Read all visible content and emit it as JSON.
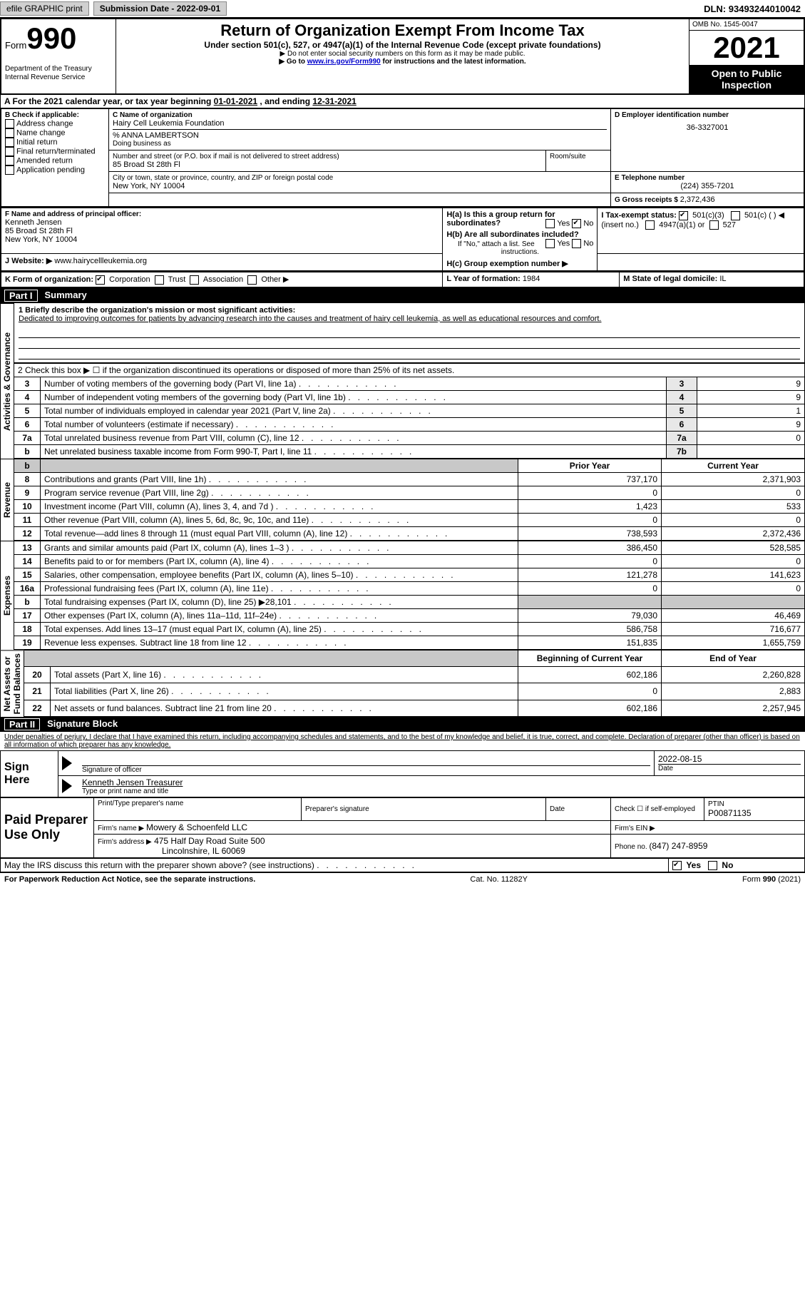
{
  "topbar": {
    "efile": "efile GRAPHIC print",
    "subdate_label": "Submission Date - ",
    "subdate": "2022-09-01",
    "dln_label": "DLN: ",
    "dln": "93493244010042"
  },
  "header": {
    "form_small": "Form",
    "form_no": "990",
    "dept": "Department of the Treasury\nInternal Revenue Service",
    "title": "Return of Organization Exempt From Income Tax",
    "sub1": "Under section 501(c), 527, or 4947(a)(1) of the Internal Revenue Code (except private foundations)",
    "sub2": "▶ Do not enter social security numbers on this form as it may be made public.",
    "sub3_pre": "▶ Go to ",
    "sub3_link": "www.irs.gov/Form990",
    "sub3_post": " for instructions and the latest information.",
    "omb": "OMB No. 1545-0047",
    "year": "2021",
    "open": "Open to Public Inspection"
  },
  "periodline": {
    "a_pre": "A For the 2021 calendar year, or tax year beginning ",
    "begin": "01-01-2021",
    "mid": " , and ending ",
    "end": "12-31-2021"
  },
  "checkB": {
    "label": "B Check if applicable:",
    "opts": [
      "Address change",
      "Name change",
      "Initial return",
      "Final return/terminated",
      "Amended return",
      "Application pending"
    ]
  },
  "blockC": {
    "label": "C Name of organization",
    "name": "Hairy Cell Leukemia Foundation",
    "care": "% ANNA LAMBERTSON",
    "dba_label": "Doing business as",
    "addr_label": "Number and street (or P.O. box if mail is not delivered to street address)",
    "room": "Room/suite",
    "addr": "85 Broad St 28th Fl",
    "city_label": "City or town, state or province, country, and ZIP or foreign postal code",
    "city": "New York, NY  10004"
  },
  "blockD": {
    "label": "D Employer identification number",
    "val": "36-3327001"
  },
  "blockE": {
    "label": "E Telephone number",
    "val": "(224) 355-7201"
  },
  "blockG": {
    "label": "G Gross receipts $ ",
    "val": "2,372,436"
  },
  "blockF": {
    "label": "F  Name and address of principal officer:",
    "name": "Kenneth Jensen",
    "addr1": "85 Broad St 28th Fl",
    "addr2": "New York, NY  10004"
  },
  "blockH": {
    "a": "H(a)  Is this a group return for subordinates?",
    "b": "H(b)  Are all subordinates included?",
    "ifno": "If \"No,\" attach a list. See instructions.",
    "c": "H(c)  Group exemption number ▶",
    "yes": "Yes",
    "no": "No"
  },
  "blockI": {
    "label": "I   Tax-exempt status:",
    "o1": "501(c)(3)",
    "o2": "501(c) (  ) ◀ (insert no.)",
    "o3": "4947(a)(1) or",
    "o4": "527"
  },
  "blockJ": {
    "label": "J   Website: ▶ ",
    "val": "www.hairycellleukemia.org"
  },
  "blockK": {
    "label": "K Form of organization:",
    "o1": "Corporation",
    "o2": "Trust",
    "o3": "Association",
    "o4": "Other ▶"
  },
  "blockL": {
    "label": "L Year of formation: ",
    "val": "1984"
  },
  "blockM": {
    "label": "M State of legal domicile: ",
    "val": "IL"
  },
  "part1": {
    "no": "Part I",
    "title": "Summary"
  },
  "summary": {
    "s1_label": "1   Briefly describe the organization's mission or most significant activities:",
    "s1_text": "Dedicated to improving outcomes for patients by advancing research into the causes and treatment of hairy cell leukemia, as well as educational resources and comfort.",
    "s2": "2   Check this box ▶ ☐  if the organization discontinued its operations or disposed of more than 25% of its net assets.",
    "rows_ag": [
      {
        "n": "3",
        "t": "Number of voting members of the governing body (Part VI, line 1a)",
        "box": "3",
        "v": "9"
      },
      {
        "n": "4",
        "t": "Number of independent voting members of the governing body (Part VI, line 1b)",
        "box": "4",
        "v": "9"
      },
      {
        "n": "5",
        "t": "Total number of individuals employed in calendar year 2021 (Part V, line 2a)",
        "box": "5",
        "v": "1"
      },
      {
        "n": "6",
        "t": "Total number of volunteers (estimate if necessary)",
        "box": "6",
        "v": "9"
      },
      {
        "n": "7a",
        "t": "Total unrelated business revenue from Part VIII, column (C), line 12",
        "box": "7a",
        "v": "0"
      },
      {
        "n": "b",
        "t": "Net unrelated business taxable income from Form 990-T, Part I, line 11",
        "box": "7b",
        "v": ""
      }
    ],
    "col_prior": "Prior Year",
    "col_curr": "Current Year",
    "revenue": [
      {
        "n": "8",
        "t": "Contributions and grants (Part VIII, line 1h)",
        "p": "737,170",
        "c": "2,371,903"
      },
      {
        "n": "9",
        "t": "Program service revenue (Part VIII, line 2g)",
        "p": "0",
        "c": "0"
      },
      {
        "n": "10",
        "t": "Investment income (Part VIII, column (A), lines 3, 4, and 7d )",
        "p": "1,423",
        "c": "533"
      },
      {
        "n": "11",
        "t": "Other revenue (Part VIII, column (A), lines 5, 6d, 8c, 9c, 10c, and 11e)",
        "p": "0",
        "c": "0"
      },
      {
        "n": "12",
        "t": "Total revenue—add lines 8 through 11 (must equal Part VIII, column (A), line 12)",
        "p": "738,593",
        "c": "2,372,436"
      }
    ],
    "expenses": [
      {
        "n": "13",
        "t": "Grants and similar amounts paid (Part IX, column (A), lines 1–3 )",
        "p": "386,450",
        "c": "528,585"
      },
      {
        "n": "14",
        "t": "Benefits paid to or for members (Part IX, column (A), line 4)",
        "p": "0",
        "c": "0"
      },
      {
        "n": "15",
        "t": "Salaries, other compensation, employee benefits (Part IX, column (A), lines 5–10)",
        "p": "121,278",
        "c": "141,623"
      },
      {
        "n": "16a",
        "t": "Professional fundraising fees (Part IX, column (A), line 11e)",
        "p": "0",
        "c": "0"
      },
      {
        "n": "b",
        "t": "Total fundraising expenses (Part IX, column (D), line 25) ▶28,101",
        "p": "",
        "c": "",
        "shade": true
      },
      {
        "n": "17",
        "t": "Other expenses (Part IX, column (A), lines 11a–11d, 11f–24e)",
        "p": "79,030",
        "c": "46,469"
      },
      {
        "n": "18",
        "t": "Total expenses. Add lines 13–17 (must equal Part IX, column (A), line 25)",
        "p": "586,758",
        "c": "716,677"
      },
      {
        "n": "19",
        "t": "Revenue less expenses. Subtract line 18 from line 12",
        "p": "151,835",
        "c": "1,655,759"
      }
    ],
    "col_beg": "Beginning of Current Year",
    "col_end": "End of Year",
    "netassets": [
      {
        "n": "20",
        "t": "Total assets (Part X, line 16)",
        "p": "602,186",
        "c": "2,260,828"
      },
      {
        "n": "21",
        "t": "Total liabilities (Part X, line 26)",
        "p": "0",
        "c": "2,883"
      },
      {
        "n": "22",
        "t": "Net assets or fund balances. Subtract line 21 from line 20",
        "p": "602,186",
        "c": "2,257,945"
      }
    ]
  },
  "sidelabels": {
    "ag": "Activities & Governance",
    "rev": "Revenue",
    "exp": "Expenses",
    "na": "Net Assets or\nFund Balances"
  },
  "part2": {
    "no": "Part II",
    "title": "Signature Block"
  },
  "sig": {
    "penalty": "Under penalties of perjury, I declare that I have examined this return, including accompanying schedules and statements, and to the best of my knowledge and belief, it is true, correct, and complete. Declaration of preparer (other than officer) is based on all information of which preparer has any knowledge.",
    "sign_here": "Sign Here",
    "sig_officer": "Signature of officer",
    "date_lbl": "Date",
    "date_val": "2022-08-15",
    "name_title": "Kenneth Jensen  Treasurer",
    "type_name": "Type or print name and title",
    "paid": "Paid Preparer Use Only",
    "prep_name_lbl": "Print/Type preparer's name",
    "prep_sig_lbl": "Preparer's signature",
    "check_self": "Check ☐ if self-employed",
    "ptin_lbl": "PTIN",
    "ptin": "P00871135",
    "firm_name_lbl": "Firm's name   ▶ ",
    "firm_name": "Mowery & Schoenfeld LLC",
    "firm_ein": "Firm's EIN ▶",
    "firm_addr_lbl": "Firm's address ▶",
    "firm_addr1": "475 Half Day Road Suite 500",
    "firm_addr2": "Lincolnshire, IL  60069",
    "phone_lbl": "Phone no. ",
    "phone": "(847) 247-8959",
    "may_irs": "May the IRS discuss this return with the preparer shown above? (see instructions)",
    "yes": "Yes",
    "no": "No"
  },
  "footer": {
    "pra": "For Paperwork Reduction Act Notice, see the separate instructions.",
    "cat": "Cat. No. 11282Y",
    "form": "Form 990 (2021)"
  }
}
